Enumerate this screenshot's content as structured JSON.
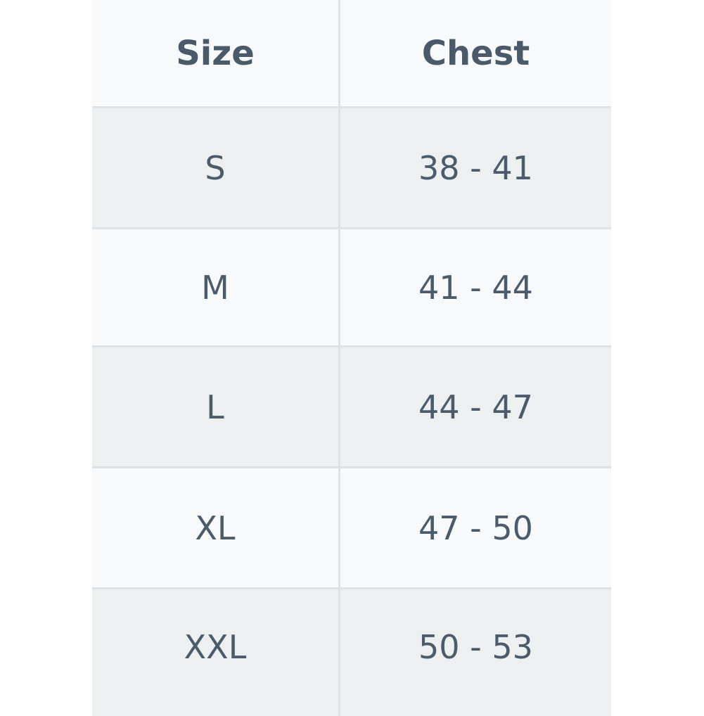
{
  "table": {
    "headers": [
      "Size",
      "Chest"
    ],
    "rows": [
      {
        "size": "S",
        "chest": "38 - 41"
      },
      {
        "size": "M",
        "chest": "41 - 44"
      },
      {
        "size": "L",
        "chest": "44 - 47"
      },
      {
        "size": "XL",
        "chest": "47 - 50"
      },
      {
        "size": "XXL",
        "chest": "50 - 53"
      }
    ]
  },
  "colors": {
    "text": "#4b5b6b",
    "row_alt": "#ecf0f1",
    "row_light": "#f8f9fa",
    "border": "#dfe2e4"
  }
}
